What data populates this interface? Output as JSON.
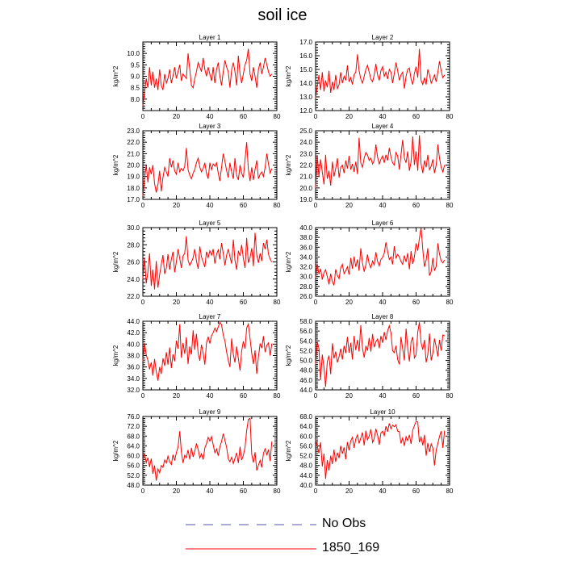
{
  "page": {
    "title": "soil ice"
  },
  "legend": {
    "entries": [
      {
        "label": "No Obs",
        "style": "dashed",
        "color": "#5555aa"
      },
      {
        "label": "1850_169",
        "style": "solid",
        "color": "#ff0000"
      }
    ]
  },
  "chart_data": [
    {
      "type": "line",
      "title": "Layer 1",
      "ylabel": "kg/m^2",
      "xlim": [
        0,
        80
      ],
      "xticks": [
        0,
        20,
        40,
        60,
        80
      ],
      "ylim": [
        7.5,
        10.5
      ],
      "yticks": [
        "8.0",
        "8.5",
        "9.0",
        "9.5",
        "10.0"
      ],
      "series": [
        {
          "color": "#ff0000",
          "x_start": 0,
          "x_step": 1,
          "values": [
            7.7,
            8.3,
            8.9,
            8.5,
            9.4,
            8.6,
            9.2,
            8.5,
            8.9,
            8.4,
            9.3,
            8.6,
            8.4,
            9.1,
            8.7,
            8.9,
            9.3,
            8.7,
            9.0,
            9.4,
            8.9,
            9.2,
            9.5,
            8.8,
            9.1,
            9.0,
            8.9,
            10.0,
            9.3,
            8.6,
            8.5,
            8.9,
            9.2,
            9.6,
            9.4,
            9.2,
            9.8,
            9.3,
            9.0,
            9.4,
            9.1,
            8.8,
            9.4,
            8.7,
            9.3,
            9.6,
            9.0,
            8.6,
            9.2,
            9.7,
            9.4,
            9.2,
            8.5,
            9.3,
            9.6,
            9.2,
            8.6,
            9.9,
            9.1,
            8.7,
            9.1,
            9.5,
            9.7,
            10.2,
            9.1,
            8.8,
            9.4,
            9.0,
            8.5,
            9.3,
            9.6,
            9.1,
            9.4,
            9.8,
            9.5,
            9.2,
            9.0,
            9.1
          ]
        }
      ]
    },
    {
      "type": "line",
      "title": "Layer 2",
      "ylabel": "kg/m^2",
      "xlim": [
        0,
        80
      ],
      "xticks": [
        0,
        20,
        40,
        60,
        80
      ],
      "ylim": [
        12.0,
        17.0
      ],
      "yticks": [
        "12.0",
        "13.0",
        "14.0",
        "15.0",
        "16.0",
        "17.0"
      ],
      "series": [
        {
          "color": "#ff0000",
          "x_start": 0,
          "x_step": 1,
          "values": [
            12.9,
            13.8,
            14.6,
            13.5,
            14.8,
            13.4,
            14.2,
            13.7,
            14.9,
            13.3,
            14.1,
            13.5,
            14.6,
            13.6,
            13.9,
            14.8,
            14.0,
            14.5,
            14.2,
            15.3,
            14.1,
            14.4,
            13.9,
            14.6,
            14.8,
            16.1,
            14.9,
            14.3,
            14.0,
            14.5,
            15.0,
            15.3,
            14.8,
            14.3,
            14.1,
            14.6,
            15.4,
            14.6,
            14.2,
            14.9,
            15.2,
            14.5,
            14.8,
            14.3,
            15.0,
            14.8,
            14.0,
            14.7,
            15.5,
            14.9,
            14.2,
            14.6,
            14.8,
            13.6,
            14.5,
            15.0,
            15.1,
            14.3,
            13.9,
            14.7,
            15.2,
            14.4,
            16.5,
            14.2,
            13.9,
            14.4,
            13.9,
            15.0,
            14.6,
            14.0,
            14.3,
            14.6,
            14.1,
            14.8,
            15.6,
            14.9,
            14.4,
            14.6
          ]
        }
      ]
    },
    {
      "type": "line",
      "title": "Layer 3",
      "ylabel": "kg/m^2",
      "xlim": [
        0,
        80
      ],
      "xticks": [
        0,
        20,
        40,
        60,
        80
      ],
      "ylim": [
        17.0,
        23.0
      ],
      "yticks": [
        "17.0",
        "18.0",
        "19.0",
        "20.0",
        "21.0",
        "22.0",
        "23.0"
      ],
      "series": [
        {
          "color": "#ff0000",
          "x_start": 0,
          "x_step": 1,
          "values": [
            17.3,
            18.8,
            20.0,
            18.5,
            19.8,
            19.2,
            20.0,
            18.4,
            17.6,
            18.3,
            19.5,
            17.7,
            18.9,
            19.8,
            19.4,
            19.0,
            20.6,
            19.8,
            20.4,
            19.5,
            19.2,
            20.2,
            19.4,
            19.7,
            19.5,
            19.9,
            21.5,
            19.6,
            19.1,
            18.8,
            19.3,
            19.6,
            20.2,
            20.6,
            19.8,
            19.4,
            19.7,
            20.2,
            19.3,
            18.8,
            20.2,
            19.6,
            20.1,
            19.9,
            20.2,
            19.3,
            18.6,
            19.8,
            21.0,
            20.3,
            19.5,
            18.9,
            20.2,
            19.4,
            18.8,
            20.6,
            19.1,
            18.7,
            20.0,
            19.3,
            18.9,
            20.5,
            22.0,
            19.6,
            18.6,
            19.8,
            18.7,
            19.6,
            20.4,
            18.8,
            19.2,
            19.4,
            19.0,
            19.8,
            21.0,
            20.1,
            19.3,
            19.7
          ]
        }
      ]
    },
    {
      "type": "line",
      "title": "Layer 4",
      "ylabel": "kg/m^2",
      "xlim": [
        0,
        80
      ],
      "xticks": [
        0,
        20,
        40,
        60,
        80
      ],
      "ylim": [
        19.0,
        25.0
      ],
      "yticks": [
        "19.0",
        "20.0",
        "21.0",
        "22.0",
        "23.0",
        "24.0",
        "25.0"
      ],
      "series": [
        {
          "color": "#ff0000",
          "x_start": 0,
          "x_step": 1,
          "values": [
            20.0,
            22.8,
            21.0,
            22.5,
            21.4,
            20.3,
            22.9,
            20.8,
            21.5,
            20.2,
            22.3,
            21.0,
            21.7,
            22.6,
            20.9,
            21.8,
            22.0,
            21.3,
            22.4,
            21.7,
            22.8,
            21.6,
            22.1,
            21.4,
            22.3,
            21.2,
            24.4,
            22.2,
            21.8,
            22.6,
            23.1,
            22.9,
            22.4,
            22.6,
            22.1,
            22.4,
            23.8,
            22.7,
            22.1,
            22.5,
            22.8,
            22.2,
            22.9,
            22.4,
            23.5,
            22.7,
            22.2,
            22.0,
            23.1,
            22.8,
            21.6,
            22.9,
            24.2,
            22.6,
            22.2,
            23.2,
            21.5,
            22.3,
            24.5,
            22.0,
            23.2,
            21.5,
            24.6,
            22.1,
            21.3,
            22.4,
            21.8,
            22.9,
            21.6,
            21.9,
            22.5,
            21.3,
            22.0,
            23.8,
            22.6,
            21.8,
            21.4,
            22.0
          ]
        }
      ]
    },
    {
      "type": "line",
      "title": "Layer 5",
      "ylabel": "kg/m^2",
      "xlim": [
        0,
        80
      ],
      "xticks": [
        0,
        20,
        40,
        60,
        80
      ],
      "ylim": [
        22.0,
        30.0
      ],
      "yticks": [
        "22.0",
        "24.0",
        "26.0",
        "28.0",
        "30.0"
      ],
      "series": [
        {
          "color": "#ff0000",
          "x_start": 0,
          "x_step": 1,
          "values": [
            24.0,
            26.5,
            23.5,
            24.8,
            27.0,
            23.2,
            25.1,
            22.8,
            26.1,
            23.0,
            24.5,
            25.7,
            26.8,
            24.6,
            25.3,
            26.9,
            25.1,
            26.3,
            27.2,
            24.8,
            26.0,
            27.5,
            26.4,
            25.3,
            26.7,
            27.0,
            29.0,
            26.2,
            25.6,
            26.0,
            26.5,
            27.5,
            26.1,
            25.2,
            27.8,
            26.6,
            26.0,
            25.4,
            27.2,
            26.5,
            27.3,
            26.8,
            27.5,
            25.8,
            26.9,
            27.4,
            26.3,
            28.2,
            27.0,
            25.6,
            26.8,
            27.5,
            26.6,
            25.8,
            28.6,
            26.2,
            25.1,
            27.3,
            26.7,
            28.0,
            26.4,
            25.3,
            28.8,
            25.9,
            26.5,
            27.6,
            25.5,
            29.4,
            26.8,
            25.9,
            27.0,
            26.1,
            28.2,
            27.5,
            28.6,
            26.9,
            26.3,
            26.0
          ]
        }
      ]
    },
    {
      "type": "line",
      "title": "Layer 6",
      "ylabel": "kg/m^2",
      "xlim": [
        0,
        80
      ],
      "xticks": [
        0,
        20,
        40,
        60,
        80
      ],
      "ylim": [
        26.0,
        40.0
      ],
      "yticks": [
        "26.0",
        "28.0",
        "30.0",
        "32.0",
        "34.0",
        "36.0",
        "38.0",
        "40.0"
      ],
      "series": [
        {
          "color": "#ff0000",
          "x_start": 0,
          "x_step": 1,
          "values": [
            29.8,
            32.5,
            30.5,
            31.6,
            29.4,
            30.8,
            31.4,
            30.0,
            28.4,
            30.6,
            29.0,
            28.2,
            31.5,
            30.2,
            29.6,
            31.8,
            32.5,
            30.6,
            31.2,
            32.0,
            30.4,
            33.8,
            31.6,
            34.1,
            32.0,
            33.5,
            31.2,
            35.8,
            32.8,
            31.0,
            32.4,
            34.5,
            32.6,
            31.8,
            33.2,
            32.4,
            35.0,
            33.1,
            32.2,
            33.5,
            33.9,
            34.8,
            37.0,
            35.2,
            33.5,
            34.0,
            32.5,
            36.2,
            33.8,
            34.5,
            34.0,
            33.1,
            32.5,
            34.3,
            33.0,
            34.8,
            31.5,
            35.2,
            32.6,
            34.0,
            36.8,
            35.3,
            37.8,
            40.0,
            35.5,
            32.0,
            33.4,
            35.8,
            30.2,
            31.0,
            33.8,
            31.2,
            32.1,
            36.8,
            34.6,
            33.2,
            32.8,
            33.4
          ]
        }
      ]
    },
    {
      "type": "line",
      "title": "Layer 7",
      "ylabel": "kg/m^2",
      "xlim": [
        0,
        80
      ],
      "xticks": [
        0,
        20,
        40,
        60,
        80
      ],
      "ylim": [
        32.0,
        44.0
      ],
      "yticks": [
        "32.0",
        "34.0",
        "36.0",
        "38.0",
        "40.0",
        "42.0",
        "44.0"
      ],
      "series": [
        {
          "color": "#ff0000",
          "x_start": 0,
          "x_step": 1,
          "values": [
            37.0,
            40.2,
            38.1,
            37.2,
            35.6,
            36.8,
            34.5,
            37.4,
            35.2,
            33.6,
            36.0,
            34.8,
            37.5,
            36.2,
            38.6,
            36.4,
            39.4,
            35.8,
            38.2,
            37.0,
            40.6,
            39.2,
            43.5,
            37.6,
            40.2,
            38.3,
            41.2,
            36.5,
            39.6,
            38.2,
            42.4,
            39.0,
            41.8,
            38.4,
            37.1,
            39.9,
            38.5,
            36.4,
            40.2,
            41.3,
            40.1,
            41.5,
            42.0,
            42.8,
            42.2,
            43.0,
            43.8,
            43.4,
            41.6,
            40.5,
            38.6,
            37.2,
            36.0,
            41.0,
            38.2,
            36.8,
            39.6,
            37.5,
            35.4,
            38.8,
            40.5,
            39.2,
            42.8,
            43.5,
            41.0,
            38.4,
            36.5,
            38.9,
            34.8,
            37.8,
            40.1,
            39.3,
            41.4,
            38.6,
            39.8,
            40.2,
            38.0,
            40.1
          ]
        }
      ]
    },
    {
      "type": "line",
      "title": "Layer 8",
      "ylabel": "kg/m^2",
      "xlim": [
        0,
        80
      ],
      "xticks": [
        0,
        20,
        40,
        60,
        80
      ],
      "ylim": [
        44.0,
        58.0
      ],
      "yticks": [
        "44.0",
        "46.0",
        "48.0",
        "50.0",
        "52.0",
        "54.0",
        "56.0",
        "58.0"
      ],
      "series": [
        {
          "color": "#ff0000",
          "x_start": 0,
          "x_step": 1,
          "values": [
            49.2,
            53.8,
            52.5,
            46.0,
            51.2,
            48.6,
            44.6,
            49.8,
            51.0,
            47.2,
            53.5,
            50.4,
            51.8,
            49.6,
            50.8,
            52.4,
            50.2,
            53.0,
            51.5,
            54.8,
            51.6,
            53.6,
            50.2,
            55.0,
            52.1,
            54.2,
            51.8,
            57.2,
            52.5,
            50.6,
            53.0,
            52.0,
            54.6,
            51.8,
            55.4,
            52.7,
            53.8,
            54.4,
            52.5,
            55.0,
            53.6,
            55.8,
            54.2,
            56.0,
            57.1,
            55.6,
            52.0,
            51.6,
            53.0,
            50.2,
            49.2,
            54.8,
            52.4,
            50.0,
            56.5,
            52.6,
            49.8,
            53.8,
            54.8,
            50.5,
            51.2,
            55.8,
            57.8,
            53.6,
            52.2,
            54.2,
            49.6,
            51.2,
            55.5,
            50.0,
            51.5,
            54.5,
            52.8,
            50.8,
            54.2,
            52.0,
            55.2,
            55.0
          ]
        }
      ]
    },
    {
      "type": "line",
      "title": "Layer 9",
      "ylabel": "kg/m^2",
      "xlim": [
        0,
        80
      ],
      "xticks": [
        0,
        20,
        40,
        60,
        80
      ],
      "ylim": [
        48.0,
        76.0
      ],
      "yticks": [
        "48.0",
        "52.0",
        "56.0",
        "60.0",
        "64.0",
        "68.0",
        "72.0",
        "76.0"
      ],
      "series": [
        {
          "color": "#ff0000",
          "x_start": 0,
          "x_step": 1,
          "values": [
            58.4,
            60.8,
            57.2,
            59.2,
            55.4,
            58.8,
            52.6,
            56.0,
            49.8,
            54.6,
            53.0,
            56.0,
            55.2,
            58.2,
            57.0,
            59.8,
            57.5,
            56.4,
            60.4,
            58.0,
            61.2,
            63.5,
            70.0,
            61.5,
            57.0,
            60.2,
            59.2,
            62.4,
            58.5,
            63.2,
            59.5,
            61.8,
            65.0,
            62.6,
            59.1,
            60.8,
            58.4,
            63.2,
            64.8,
            67.5,
            66.0,
            67.8,
            64.5,
            61.2,
            62.8,
            60.0,
            63.5,
            65.8,
            69.0,
            66.2,
            63.4,
            58.8,
            57.5,
            59.4,
            56.8,
            58.9,
            61.2,
            57.0,
            63.6,
            58.2,
            60.1,
            63.5,
            70.2,
            74.8,
            75.2,
            60.5,
            57.2,
            61.4,
            54.0,
            56.2,
            58.1,
            55.2,
            61.0,
            62.8,
            60.4,
            62.5,
            57.8,
            65.8
          ]
        }
      ]
    },
    {
      "type": "line",
      "title": "Layer 10",
      "ylabel": "kg/m^2",
      "xlim": [
        0,
        80
      ],
      "xticks": [
        0,
        20,
        40,
        60,
        80
      ],
      "ylim": [
        40.0,
        68.0
      ],
      "yticks": [
        "40.0",
        "44.0",
        "48.0",
        "52.0",
        "56.0",
        "60.0",
        "64.0",
        "68.0"
      ],
      "series": [
        {
          "color": "#ff0000",
          "x_start": 0,
          "x_step": 1,
          "values": [
            58.6,
            56.0,
            53.0,
            57.5,
            47.6,
            52.8,
            42.5,
            50.2,
            46.0,
            52.0,
            48.6,
            54.5,
            49.5,
            53.2,
            51.0,
            56.0,
            52.8,
            55.4,
            50.5,
            57.6,
            54.2,
            58.1,
            59.5,
            55.2,
            58.8,
            60.5,
            57.0,
            59.2,
            61.5,
            56.2,
            62.2,
            58.5,
            60.0,
            62.8,
            57.4,
            59.0,
            63.0,
            60.4,
            56.5,
            61.2,
            62.0,
            60.2,
            64.0,
            61.8,
            65.2,
            63.0,
            64.5,
            63.8,
            64.6,
            62.0,
            61.8,
            57.0,
            59.2,
            56.0,
            59.8,
            58.2,
            60.5,
            56.8,
            62.5,
            64.2,
            66.0,
            65.8,
            57.5,
            59.6,
            56.2,
            60.5,
            52.0,
            57.2,
            53.5,
            56.8,
            55.1,
            48.0,
            54.2,
            57.0,
            59.8,
            62.0,
            55.2,
            62.2
          ]
        }
      ]
    }
  ]
}
